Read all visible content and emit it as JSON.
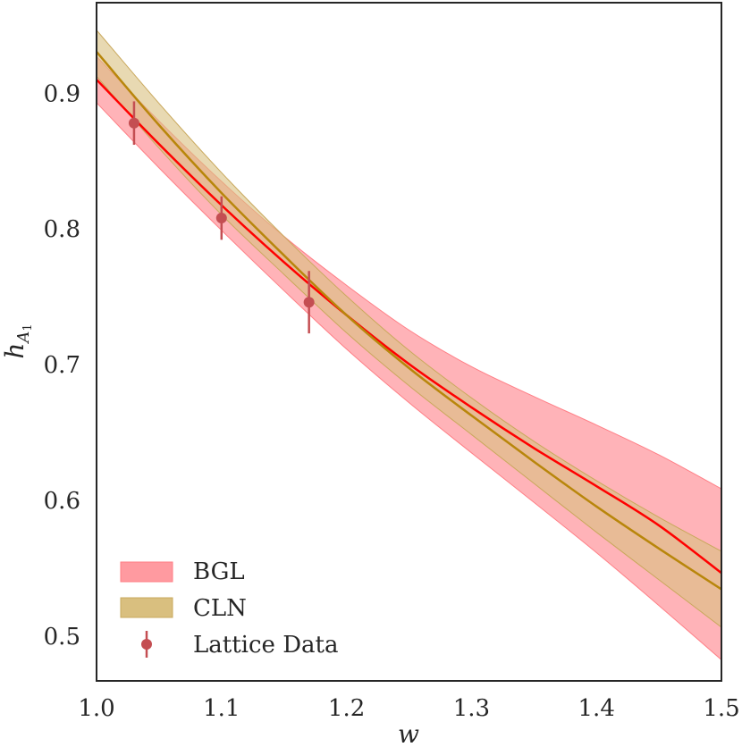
{
  "chart_data": {
    "type": "line",
    "title": "",
    "xlabel": "w",
    "ylabel": "h_A1",
    "ylabel_main": "h",
    "ylabel_sub": "A",
    "ylabel_subsub": "1",
    "xlim": [
      1.0,
      1.5
    ],
    "ylim": [
      0.467,
      0.9667
    ],
    "xticks": [
      1.0,
      1.1,
      1.2,
      1.3,
      1.4,
      1.5
    ],
    "xtick_labels": [
      "1.0",
      "1.1",
      "1.2",
      "1.3",
      "1.4",
      "1.5"
    ],
    "yticks": [
      0.5,
      0.6,
      0.7,
      0.8,
      0.9
    ],
    "ytick_labels": [
      "0.5",
      "0.6",
      "0.7",
      "0.8",
      "0.9"
    ],
    "grid": false,
    "legend_position": "bottom-left",
    "series": [
      {
        "name": "BGL",
        "kind": "band",
        "color": "#ff0000",
        "band_color": "#ff9aa0",
        "x": [
          1.0,
          1.05,
          1.1,
          1.15,
          1.2,
          1.25,
          1.3,
          1.35,
          1.4,
          1.45,
          1.5
        ],
        "center": [
          0.91,
          0.8625,
          0.8175,
          0.7755,
          0.7365,
          0.7005,
          0.6685,
          0.6385,
          0.6105,
          0.5815,
          0.5465
        ],
        "lower": [
          0.893,
          0.845,
          0.799,
          0.7545,
          0.7115,
          0.672,
          0.635,
          0.5985,
          0.5615,
          0.5225,
          0.4825
        ],
        "upper": [
          0.927,
          0.8795,
          0.835,
          0.7945,
          0.7585,
          0.7255,
          0.6985,
          0.6765,
          0.6555,
          0.6335,
          0.6085
        ]
      },
      {
        "name": "CLN",
        "kind": "band",
        "color": "#b8860b",
        "band_color": "#d9bf7f",
        "x": [
          1.0,
          1.05,
          1.1,
          1.15,
          1.2,
          1.25,
          1.3,
          1.35,
          1.4,
          1.45,
          1.5
        ],
        "center": [
          0.9305,
          0.8765,
          0.8265,
          0.7805,
          0.7365,
          0.6975,
          0.6625,
          0.6285,
          0.5955,
          0.5645,
          0.5345
        ],
        "lower": [
          0.9125,
          0.8595,
          0.8105,
          0.7665,
          0.7235,
          0.6845,
          0.6485,
          0.6125,
          0.5765,
          0.5415,
          0.5065
        ],
        "upper": [
          0.9465,
          0.8925,
          0.8415,
          0.7945,
          0.7505,
          0.7105,
          0.6755,
          0.6435,
          0.6145,
          0.5875,
          0.5625
        ]
      },
      {
        "name": "Lattice Data",
        "kind": "errorbar",
        "color": "#c44e52",
        "x": [
          1.03,
          1.1,
          1.17
        ],
        "y": [
          0.878,
          0.808,
          0.746
        ],
        "yerr": [
          0.016,
          0.016,
          0.023
        ]
      }
    ]
  }
}
